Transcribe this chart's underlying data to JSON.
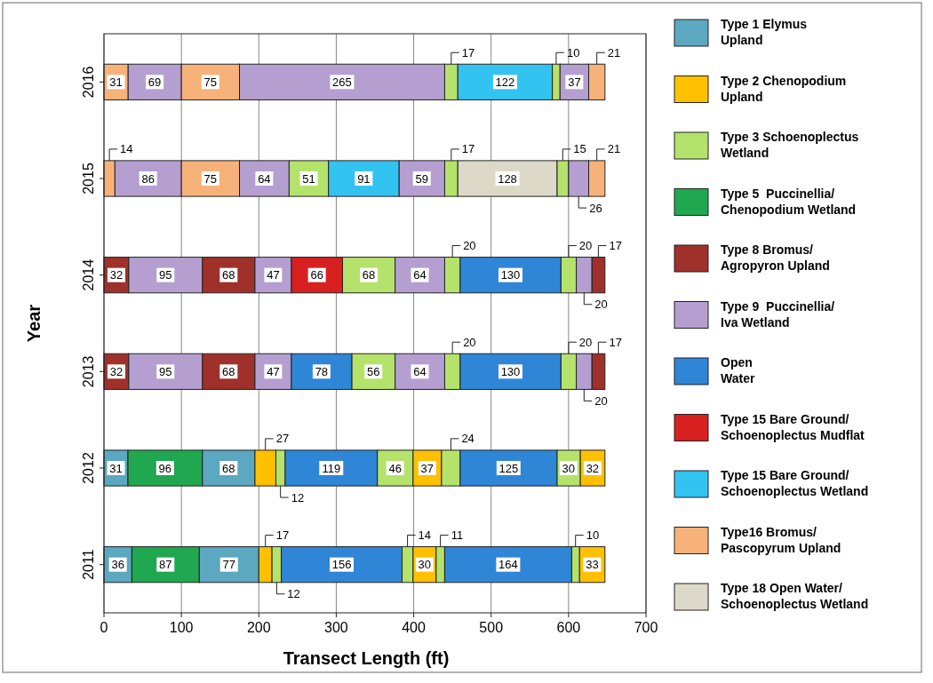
{
  "chart_data": {
    "type": "bar",
    "orientation": "horizontal",
    "xlabel": "Transect Length (ft)",
    "ylabel": "Year",
    "categories": [
      "2016",
      "2015",
      "2014",
      "2013",
      "2012",
      "2011"
    ],
    "xlim": [
      0,
      700
    ],
    "xticks": [
      0,
      100,
      200,
      300,
      400,
      500,
      600,
      700
    ],
    "grid": "x",
    "legend": "right",
    "data_labels": true,
    "series": [
      {
        "name": "Type 1 Elymus Upland",
        "color": "#5ba8c0",
        "values": [
          null,
          null,
          null,
          null,
          31,
          36
        ],
        "base": [
          null,
          null,
          null,
          null,
          0,
          0
        ]
      },
      {
        "color": "#5ba8c0",
        "values": [
          null,
          null,
          null,
          null,
          68,
          77
        ],
        "base": [
          null,
          null,
          null,
          null,
          127,
          123
        ]
      },
      {
        "name": "Type 2 Chenopodium Upland",
        "color": "#ffc000",
        "values": [
          null,
          null,
          null,
          null,
          27,
          17
        ],
        "base": [
          null,
          null,
          null,
          null,
          195,
          200
        ]
      },
      {
        "color": "#ffc000",
        "values": [
          null,
          null,
          null,
          null,
          37,
          30
        ],
        "base": [
          null,
          null,
          null,
          null,
          399,
          399
        ]
      },
      {
        "color": "#ffc000",
        "values": [
          null,
          null,
          null,
          null,
          32,
          33
        ],
        "base": [
          null,
          null,
          null,
          null,
          615,
          614
        ]
      },
      {
        "name": "Type 3 Schoenoplectus Wetland",
        "color": "#b5e26b",
        "values": [
          17,
          51,
          68,
          56,
          12,
          12
        ],
        "base": [
          440,
          239,
          308,
          320,
          222,
          217
        ]
      },
      {
        "color": "#b5e26b",
        "values": [
          10,
          17,
          20,
          20,
          46,
          14
        ],
        "base": [
          579,
          440,
          440,
          440,
          353,
          385
        ]
      },
      {
        "color": "#b5e26b",
        "values": [
          null,
          15,
          20,
          20,
          24,
          11
        ],
        "base": [
          null,
          585,
          590,
          590,
          436,
          429
        ]
      },
      {
        "color": "#b5e26b",
        "values": [
          null,
          null,
          null,
          null,
          30,
          10
        ],
        "base": [
          null,
          null,
          null,
          null,
          585,
          604
        ]
      },
      {
        "name": "Type 5  Puccinellia/ Chenopodium Wetland",
        "color": "#1fa84f",
        "values": [
          null,
          null,
          null,
          null,
          96,
          87
        ],
        "base": [
          null,
          null,
          null,
          null,
          31,
          36
        ]
      },
      {
        "name": "Type 8 Bromus/ Agropyron Upland",
        "color": "#a0302a",
        "values": [
          null,
          null,
          32,
          32,
          null,
          null
        ],
        "base": [
          null,
          null,
          0,
          0,
          null,
          null
        ]
      },
      {
        "color": "#a0302a",
        "values": [
          null,
          null,
          68,
          68,
          null,
          null
        ],
        "base": [
          null,
          null,
          127,
          127,
          null,
          null
        ]
      },
      {
        "color": "#a0302a",
        "values": [
          null,
          null,
          17,
          17,
          null,
          null
        ],
        "base": [
          null,
          null,
          630,
          630,
          null,
          null
        ]
      },
      {
        "name": "Type 9  Puccinellia/ Iva Wetland",
        "color": "#b59fd0",
        "values": [
          69,
          86,
          95,
          95,
          null,
          null
        ],
        "base": [
          31,
          14,
          32,
          32,
          null,
          null
        ]
      },
      {
        "color": "#b59fd0",
        "values": [
          265,
          64,
          47,
          47,
          null,
          null
        ],
        "base": [
          175,
          175,
          195,
          195,
          null,
          null
        ]
      },
      {
        "color": "#b59fd0",
        "values": [
          37,
          59,
          64,
          64,
          null,
          null
        ],
        "base": [
          589,
          381,
          376,
          376,
          null,
          null
        ]
      },
      {
        "color": "#b59fd0",
        "values": [
          null,
          26,
          20,
          20,
          null,
          null
        ],
        "base": [
          null,
          600,
          610,
          610,
          null,
          null
        ]
      },
      {
        "name": "Open Water",
        "color": "#2f86d6",
        "values": [
          null,
          null,
          130,
          78,
          119,
          156
        ],
        "base": [
          null,
          null,
          460,
          242,
          234,
          229
        ]
      },
      {
        "color": "#2f86d6",
        "values": [
          null,
          null,
          null,
          130,
          125,
          164
        ],
        "base": [
          null,
          null,
          null,
          460,
          460,
          440
        ]
      },
      {
        "name": "Type 15 Bare Ground/ Schoenoplectus Mudflat",
        "color": "#d92020",
        "values": [
          null,
          null,
          66,
          null,
          null,
          null
        ],
        "base": [
          null,
          null,
          242,
          null,
          null,
          null
        ]
      },
      {
        "name": "Type 15 Bare Ground/ Schoenoplectus Wetland",
        "color": "#33c3f0",
        "values": [
          122,
          91,
          null,
          null,
          null,
          null
        ],
        "base": [
          457,
          290,
          null,
          null,
          null,
          null
        ]
      },
      {
        "name": "Type16 Bromus/ Pascopyrum Upland",
        "color": "#f7b27a",
        "values": [
          31,
          14,
          null,
          null,
          null,
          null
        ],
        "base": [
          0,
          0,
          null,
          null,
          null,
          null
        ]
      },
      {
        "color": "#f7b27a",
        "values": [
          75,
          75,
          null,
          null,
          null,
          null
        ],
        "base": [
          100,
          100,
          null,
          null,
          null,
          null
        ]
      },
      {
        "color": "#f7b27a",
        "values": [
          21,
          21,
          null,
          null,
          null,
          null
        ],
        "base": [
          626,
          626,
          null,
          null,
          null,
          null
        ]
      },
      {
        "name": "Type 18 Open Water/ Schoenoplectus Wetland",
        "color": "#ddd9c8",
        "values": [
          null,
          128,
          null,
          null,
          null,
          null
        ],
        "base": [
          null,
          457,
          null,
          null,
          null,
          null
        ]
      }
    ]
  }
}
